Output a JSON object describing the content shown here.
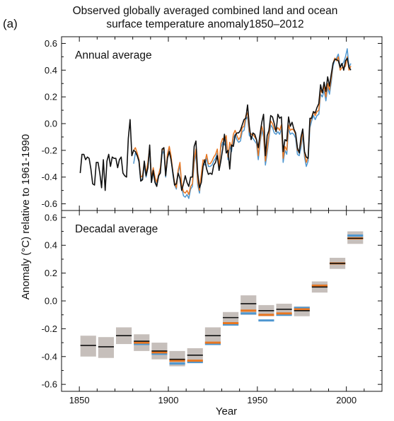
{
  "chart_data": {
    "type": "line",
    "panel_label": "(a)",
    "title_lines": [
      "Observed globally averaged combined land and ocean",
      "surface temperature anomaly1850–2012"
    ],
    "ylabel": "Anomaly (°C) relative to 1961-1990",
    "xlabel": "Year",
    "xlim": [
      1840,
      2020
    ],
    "x_ticks": [
      1850,
      1900,
      1950,
      2000
    ],
    "colors": {
      "black": "#111111",
      "orange": "#e87722",
      "blue": "#4f97d0",
      "box": "#c6bfbb"
    },
    "panels": [
      {
        "label": "Annual average",
        "ylim": [
          -0.65,
          0.65
        ],
        "y_ticks": [
          -0.6,
          -0.4,
          -0.2,
          0.0,
          0.2,
          0.4,
          0.6
        ],
        "series": [
          {
            "color_key": "black",
            "x_start": 1850,
            "values": [
              -0.37,
              -0.23,
              -0.23,
              -0.27,
              -0.25,
              -0.26,
              -0.34,
              -0.45,
              -0.46,
              -0.29,
              -0.29,
              -0.37,
              -0.48,
              -0.27,
              -0.5,
              -0.28,
              -0.23,
              -0.32,
              -0.25,
              -0.26,
              -0.26,
              -0.33,
              -0.27,
              -0.25,
              -0.37,
              -0.39,
              -0.4,
              -0.11,
              0.03,
              -0.24,
              -0.2,
              -0.21,
              -0.24,
              -0.28,
              -0.43,
              -0.42,
              -0.28,
              -0.39,
              -0.33,
              -0.16,
              -0.44,
              -0.35,
              -0.44,
              -0.47,
              -0.39,
              -0.37,
              -0.19,
              -0.18,
              -0.39,
              -0.26,
              -0.21,
              -0.27,
              -0.36,
              -0.46,
              -0.45,
              -0.37,
              -0.41,
              -0.5,
              -0.45,
              -0.39,
              -0.44,
              -0.47,
              -0.4,
              -0.4,
              -0.17,
              -0.13,
              -0.37,
              -0.48,
              -0.44,
              -0.32,
              -0.27,
              -0.34,
              -0.38,
              -0.37,
              -0.38,
              -0.31,
              -0.29,
              -0.24,
              -0.35,
              -0.28,
              -0.19,
              -0.08,
              -0.22,
              -0.2,
              -0.34,
              -0.16,
              -0.17,
              -0.09,
              -0.07,
              -0.07,
              -0.05,
              -0.01,
              0.03,
              0.04,
              0.14,
              -0.02,
              -0.12,
              -0.07,
              -0.08,
              -0.12,
              -0.18,
              -0.08,
              0.01,
              0.07,
              -0.24,
              -0.09,
              -0.05,
              0.06,
              0.05,
              0.0,
              -0.06,
              0.07,
              0.04,
              0.05,
              -0.21,
              -0.12,
              -0.13,
              0.05,
              -0.02,
              0.01,
              -0.04,
              -0.07,
              -0.18,
              -0.22,
              -0.1,
              -0.04,
              -0.21,
              -0.25,
              -0.26,
              0.04,
              0.04,
              0.09,
              0.08,
              0.12,
              0.15,
              0.29,
              0.23,
              0.31,
              0.24,
              0.35,
              0.28,
              0.37,
              0.45,
              0.48,
              0.48,
              0.47,
              0.42,
              0.45,
              0.4,
              0.47,
              0.49,
              0.42,
              0.4
            ]
          },
          {
            "color_key": "orange",
            "x_start": 1880,
            "values": [
              -0.2,
              -0.18,
              -0.22,
              -0.27,
              -0.4,
              -0.39,
              -0.29,
              -0.37,
              -0.29,
              -0.18,
              -0.41,
              -0.33,
              -0.4,
              -0.44,
              -0.38,
              -0.33,
              -0.2,
              -0.18,
              -0.38,
              -0.23,
              -0.17,
              -0.24,
              -0.36,
              -0.44,
              -0.48,
              -0.35,
              -0.29,
              -0.46,
              -0.51,
              -0.52,
              -0.5,
              -0.53,
              -0.47,
              -0.45,
              -0.27,
              -0.19,
              -0.43,
              -0.5,
              -0.38,
              -0.27,
              -0.29,
              -0.23,
              -0.3,
              -0.3,
              -0.28,
              -0.25,
              -0.23,
              -0.19,
              -0.33,
              -0.15,
              -0.11,
              -0.13,
              -0.09,
              -0.25,
              -0.14,
              -0.18,
              -0.08,
              -0.05,
              -0.09,
              -0.12,
              -0.1,
              -0.03,
              -0.02,
              0.06,
              0.08,
              -0.06,
              -0.08,
              -0.08,
              -0.1,
              -0.12,
              -0.24,
              -0.12,
              -0.02,
              -0.07,
              -0.28,
              -0.19,
              -0.08,
              0.02,
              0.0,
              -0.04,
              -0.05,
              -0.03,
              -0.05,
              -0.01,
              -0.26,
              -0.17,
              -0.2,
              -0.01,
              -0.05,
              -0.04,
              -0.05,
              -0.08,
              -0.2,
              -0.21,
              -0.15,
              -0.05,
              -0.22,
              -0.29,
              -0.25,
              0.0,
              0.05,
              0.09,
              0.06,
              0.09,
              0.1,
              0.25,
              0.23,
              0.28,
              0.2,
              0.3,
              0.25,
              0.34,
              0.45,
              0.49,
              0.47,
              0.5,
              0.4,
              0.42,
              0.42,
              0.43,
              0.5,
              0.4,
              0.43
            ]
          },
          {
            "color_key": "blue",
            "x_start": 1880,
            "values": [
              -0.3,
              -0.22,
              -0.24,
              -0.29,
              -0.43,
              -0.41,
              -0.31,
              -0.4,
              -0.32,
              -0.2,
              -0.44,
              -0.37,
              -0.43,
              -0.46,
              -0.4,
              -0.35,
              -0.23,
              -0.2,
              -0.4,
              -0.25,
              -0.19,
              -0.26,
              -0.38,
              -0.46,
              -0.49,
              -0.37,
              -0.31,
              -0.48,
              -0.54,
              -0.55,
              -0.53,
              -0.56,
              -0.49,
              -0.47,
              -0.3,
              -0.22,
              -0.46,
              -0.52,
              -0.4,
              -0.3,
              -0.31,
              -0.26,
              -0.32,
              -0.32,
              -0.31,
              -0.28,
              -0.26,
              -0.22,
              -0.35,
              -0.18,
              -0.14,
              -0.16,
              -0.12,
              -0.27,
              -0.17,
              -0.21,
              -0.11,
              -0.08,
              -0.12,
              -0.14,
              -0.13,
              -0.06,
              -0.05,
              0.03,
              0.05,
              -0.09,
              -0.1,
              -0.11,
              -0.13,
              -0.15,
              -0.27,
              -0.15,
              -0.05,
              -0.1,
              -0.31,
              -0.22,
              -0.11,
              -0.01,
              -0.03,
              -0.07,
              -0.08,
              -0.06,
              -0.08,
              -0.04,
              -0.29,
              -0.2,
              -0.23,
              -0.04,
              -0.08,
              -0.07,
              -0.08,
              -0.11,
              -0.23,
              -0.24,
              -0.18,
              -0.08,
              -0.25,
              -0.32,
              -0.28,
              -0.03,
              0.02,
              0.06,
              0.03,
              0.06,
              0.07,
              0.22,
              0.2,
              0.25,
              0.17,
              0.27,
              0.22,
              0.31,
              0.43,
              0.48,
              0.49,
              0.52,
              0.43,
              0.44,
              0.46,
              0.5,
              0.56,
              0.42,
              0.45
            ]
          }
        ]
      },
      {
        "label": "Decadal average",
        "ylim": [
          -0.65,
          0.65
        ],
        "y_ticks": [
          -0.6,
          -0.4,
          -0.2,
          0.0,
          0.2,
          0.4,
          0.6
        ],
        "decades": [
          {
            "start": 1850,
            "black": -0.32,
            "lo": -0.4,
            "hi": -0.25
          },
          {
            "start": 1860,
            "black": -0.33,
            "lo": -0.41,
            "hi": -0.26
          },
          {
            "start": 1870,
            "black": -0.25,
            "lo": -0.31,
            "hi": -0.19
          },
          {
            "start": 1880,
            "black": -0.29,
            "orange": -0.3,
            "blue": -0.31,
            "lo": -0.36,
            "hi": -0.24
          },
          {
            "start": 1890,
            "black": -0.36,
            "orange": -0.37,
            "blue": -0.38,
            "lo": -0.42,
            "hi": -0.3
          },
          {
            "start": 1900,
            "black": -0.42,
            "orange": -0.43,
            "blue": -0.45,
            "lo": -0.47,
            "hi": -0.36
          },
          {
            "start": 1910,
            "black": -0.39,
            "orange": -0.43,
            "blue": -0.44,
            "lo": -0.44,
            "hi": -0.34
          },
          {
            "start": 1920,
            "black": -0.25,
            "orange": -0.3,
            "blue": -0.31,
            "lo": -0.31,
            "hi": -0.19
          },
          {
            "start": 1930,
            "black": -0.12,
            "orange": -0.16,
            "blue": -0.17,
            "lo": -0.17,
            "hi": -0.08
          },
          {
            "start": 1940,
            "black": -0.02,
            "orange": -0.07,
            "blue": -0.09,
            "lo": -0.1,
            "hi": 0.04
          },
          {
            "start": 1950,
            "black": -0.07,
            "orange": -0.1,
            "blue": -0.14,
            "lo": -0.11,
            "hi": -0.03
          },
          {
            "start": 1960,
            "black": -0.06,
            "orange": -0.09,
            "blue": -0.1,
            "lo": -0.1,
            "hi": -0.02
          },
          {
            "start": 1970,
            "black": -0.07,
            "orange": -0.06,
            "blue": -0.05,
            "lo": -0.11,
            "hi": -0.04
          },
          {
            "start": 1980,
            "black": 0.1,
            "orange": 0.11,
            "blue": 0.11,
            "lo": 0.06,
            "hi": 0.14
          },
          {
            "start": 1990,
            "black": 0.27,
            "orange": 0.27,
            "blue": 0.27,
            "lo": 0.23,
            "hi": 0.31
          },
          {
            "start": 2000,
            "black": 0.45,
            "orange": 0.45,
            "blue": 0.47,
            "lo": 0.41,
            "hi": 0.5
          }
        ]
      }
    ]
  }
}
